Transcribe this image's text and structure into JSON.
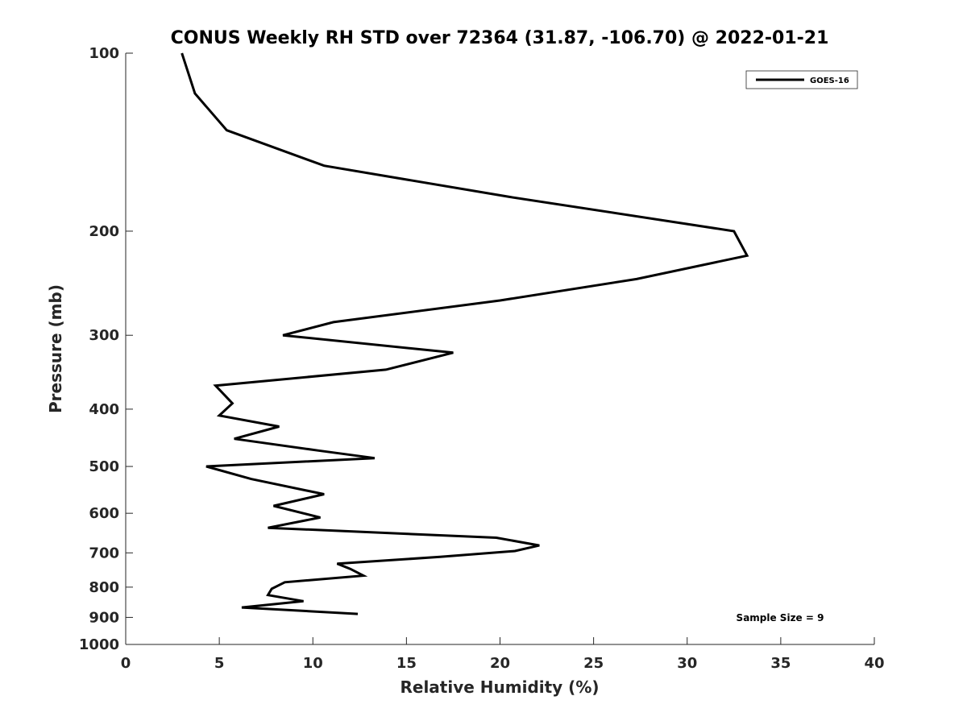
{
  "chart_data": {
    "type": "line",
    "title": "CONUS Weekly RH STD over 72364 (31.87, -106.70) @ 2022-01-21",
    "xlabel": "Relative Humidity (%)",
    "ylabel": "Pressure (mb)",
    "xlim": [
      0,
      40
    ],
    "ylim": [
      100,
      1000
    ],
    "y_scale": "log",
    "y_reversed": true,
    "x_ticks": [
      "0",
      "5",
      "10",
      "15",
      "20",
      "25",
      "30",
      "35",
      "40"
    ],
    "y_ticks": [
      "100",
      "200",
      "300",
      "400",
      "500",
      "600",
      "700",
      "800",
      "900",
      "1000"
    ],
    "grid": false,
    "legend_position": "top-right",
    "annotation": "Sample Size = 9",
    "series": [
      {
        "name": "GOES-16",
        "color": "#000000",
        "x": [
          3.0,
          3.7,
          5.4,
          10.6,
          20.5,
          32.5,
          33.2,
          27.3,
          20.0,
          11.1,
          8.4,
          17.5,
          13.9,
          4.8,
          5.7,
          5.0,
          8.2,
          5.8,
          10.3,
          13.3,
          4.3,
          6.7,
          10.6,
          7.9,
          10.4,
          7.6,
          19.8,
          22.1,
          20.8,
          16.8,
          11.3,
          12.0,
          12.7,
          8.5,
          7.8,
          7.6,
          9.5,
          6.2,
          12.4
        ],
        "y": [
          100,
          117,
          135,
          155,
          175,
          200,
          220,
          241,
          262,
          285,
          300,
          321,
          343,
          365,
          391,
          410,
          428,
          449,
          470,
          484,
          500,
          525,
          557,
          583,
          610,
          635,
          660,
          680,
          695,
          711,
          730,
          745,
          765,
          785,
          805,
          825,
          845,
          866,
          888
        ]
      }
    ]
  }
}
